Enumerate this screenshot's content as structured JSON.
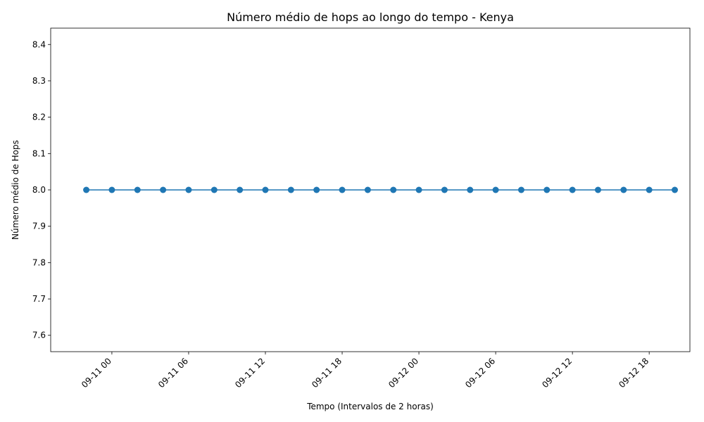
{
  "chart_data": {
    "type": "line",
    "title": "Número médio de hops ao longo do tempo - Kenya",
    "xlabel": "Tempo (Intervalos de 2 horas)",
    "ylabel": "Número médio de Hops",
    "x_tick_labels": [
      "09-11 00",
      "09-11 06",
      "09-11 12",
      "09-11 18",
      "09-12 00",
      "09-12 06",
      "09-12 12",
      "09-12 18"
    ],
    "y_tick_labels": [
      "7.6",
      "7.7",
      "7.8",
      "7.9",
      "8.0",
      "8.1",
      "8.2",
      "8.3",
      "8.4"
    ],
    "ylim": [
      7.555,
      8.445
    ],
    "xlim": [
      "2023-09-10 19:13",
      "2023-09-12 21:11"
    ],
    "grid": false,
    "legend": "none",
    "series": [
      {
        "color": "#1f77b4",
        "marker": "circle",
        "x": [
          "09-10 22:00",
          "09-11 00:00",
          "09-11 02:00",
          "09-11 04:00",
          "09-11 06:00",
          "09-11 08:00",
          "09-11 10:00",
          "09-11 12:00",
          "09-11 14:00",
          "09-11 16:00",
          "09-11 18:00",
          "09-11 20:00",
          "09-11 22:00",
          "09-12 00:00",
          "09-12 02:00",
          "09-12 04:00",
          "09-12 06:00",
          "09-12 08:00",
          "09-12 10:00",
          "09-12 12:00",
          "09-12 14:00",
          "09-12 16:00",
          "09-12 18:00",
          "09-12 20:00"
        ],
        "values": [
          8.0,
          8.0,
          8.0,
          8.0,
          8.0,
          8.0,
          8.0,
          8.0,
          8.0,
          8.0,
          8.0,
          8.0,
          8.0,
          8.0,
          8.0,
          8.0,
          8.0,
          8.0,
          8.0,
          8.0,
          8.0,
          8.0,
          8.0,
          8.0
        ]
      }
    ]
  }
}
